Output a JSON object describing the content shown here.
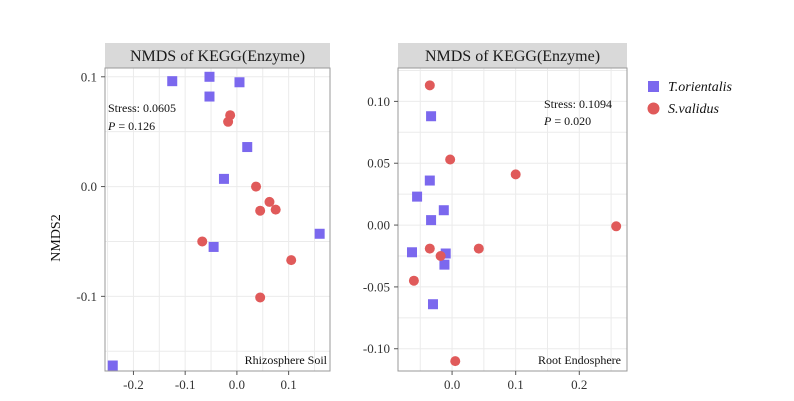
{
  "colors": {
    "t_orientalis": "#7b68ee",
    "s_validus": "#e05a5a",
    "strip_bg": "#d9d9d9",
    "grid": "#ebebeb",
    "frame": "#999999"
  },
  "legend": {
    "items": [
      {
        "label": "T.orientalis",
        "marker": "square",
        "color": "#7b68ee"
      },
      {
        "label": "S.validus",
        "marker": "circle",
        "color": "#e05a5a"
      }
    ]
  },
  "ylabel": "NMDS2",
  "chart_data": [
    {
      "type": "scatter",
      "title": "NMDS of KEGG(Enzyme)",
      "facet_label": "Rhizosphere Soil",
      "stress_text": "Stress: 0.0605",
      "p_label": "P",
      "p_value_text": " = 0.126",
      "xlim": [
        -0.255,
        0.18
      ],
      "ylim": [
        -0.168,
        0.108
      ],
      "xticks": [
        -0.2,
        -0.1,
        0.0,
        0.1
      ],
      "xtick_labels": [
        "-0.2",
        "-0.1",
        "0.0",
        "0.1"
      ],
      "yticks": [
        -0.1,
        0.0,
        0.1
      ],
      "ytick_labels": [
        "-0.1",
        "0.0",
        "0.1"
      ],
      "series": [
        {
          "name": "T.orientalis",
          "points": [
            [
              -0.125,
              0.096
            ],
            [
              -0.053,
              0.1
            ],
            [
              0.005,
              0.095
            ],
            [
              -0.053,
              0.082
            ],
            [
              0.02,
              0.036
            ],
            [
              -0.025,
              0.007
            ],
            [
              -0.045,
              -0.055
            ],
            [
              0.16,
              -0.043
            ],
            [
              -0.24,
              -0.163
            ]
          ]
        },
        {
          "name": "S.validus",
          "points": [
            [
              -0.013,
              0.065
            ],
            [
              -0.017,
              0.059
            ],
            [
              0.037,
              0.0
            ],
            [
              0.063,
              -0.014
            ],
            [
              0.075,
              -0.021
            ],
            [
              0.045,
              -0.022
            ],
            [
              -0.067,
              -0.05
            ],
            [
              0.105,
              -0.067
            ],
            [
              0.045,
              -0.101
            ]
          ]
        }
      ]
    },
    {
      "type": "scatter",
      "title": "NMDS of KEGG(Enzyme)",
      "facet_label": "Root Endosphere",
      "stress_text": "Stress: 0.1094",
      "p_label": "P",
      "p_value_text": " = 0.020",
      "xlim": [
        -0.085,
        0.275
      ],
      "ylim": [
        -0.118,
        0.127
      ],
      "xticks": [
        0.0,
        0.1,
        0.2
      ],
      "xtick_labels": [
        "0.0",
        "0.1",
        "0.2"
      ],
      "yticks": [
        -0.1,
        -0.05,
        0.0,
        0.05,
        0.1
      ],
      "ytick_labels": [
        "-0.10",
        "-0.05",
        "0.00",
        "0.05",
        "0.10"
      ],
      "series": [
        {
          "name": "T.orientalis",
          "points": [
            [
              -0.033,
              0.088
            ],
            [
              -0.035,
              0.036
            ],
            [
              -0.055,
              0.023
            ],
            [
              -0.013,
              0.012
            ],
            [
              -0.033,
              0.004
            ],
            [
              -0.063,
              -0.022
            ],
            [
              -0.01,
              -0.023
            ],
            [
              -0.012,
              -0.032
            ],
            [
              -0.03,
              -0.064
            ]
          ]
        },
        {
          "name": "S.validus",
          "points": [
            [
              -0.035,
              0.113
            ],
            [
              -0.003,
              0.053
            ],
            [
              0.1,
              0.041
            ],
            [
              0.258,
              -0.001
            ],
            [
              -0.035,
              -0.019
            ],
            [
              0.042,
              -0.019
            ],
            [
              -0.018,
              -0.025
            ],
            [
              -0.06,
              -0.045
            ],
            [
              0.005,
              -0.11
            ]
          ]
        }
      ]
    }
  ]
}
